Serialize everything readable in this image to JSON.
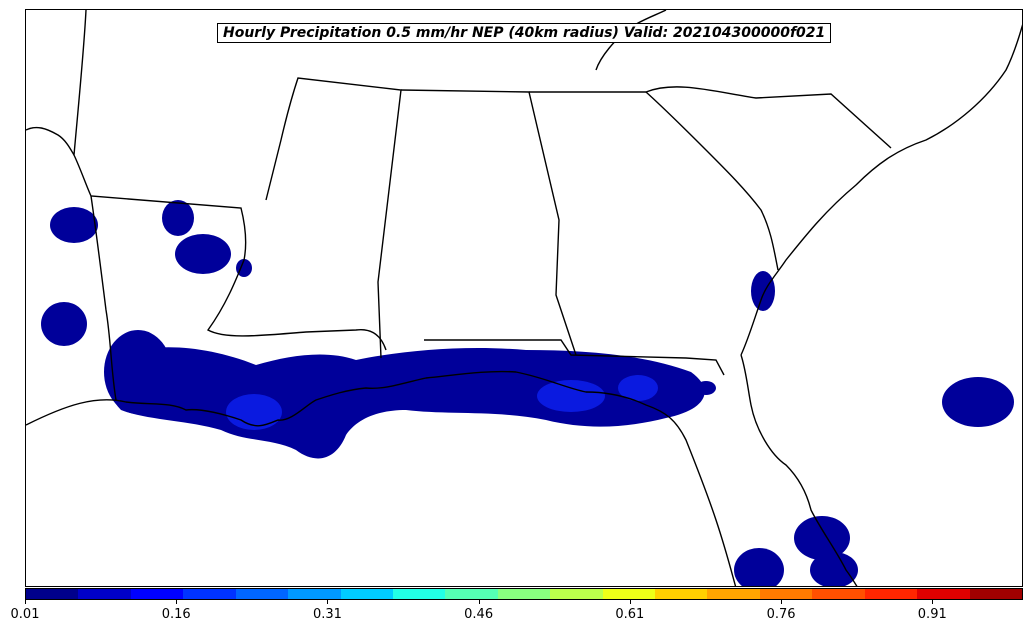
{
  "title": "Hourly Precipitation 0.5 mm/hr NEP (40km radius) Valid: 202104300000f021",
  "colorbar": {
    "colors": [
      "#00008b",
      "#0000c8",
      "#0000ff",
      "#0033ff",
      "#0066ff",
      "#0099ff",
      "#00ccff",
      "#22ffe6",
      "#55ffb4",
      "#88ff80",
      "#bbff4c",
      "#eeff18",
      "#ffd000",
      "#ffa500",
      "#ff7b00",
      "#ff5000",
      "#ff2600",
      "#e00000",
      "#a00000"
    ],
    "tick_labels": [
      "0.01",
      "0.16",
      "0.31",
      "0.46",
      "0.61",
      "0.76",
      "0.91"
    ],
    "tick_values": [
      0.01,
      0.16,
      0.31,
      0.46,
      0.61,
      0.76,
      0.91
    ],
    "vmin": 0.01,
    "vmax": 1.0
  },
  "map_colors": {
    "land_border": "#000000",
    "precip_low": "#00009a",
    "precip_mid": "#0a1ae0"
  }
}
